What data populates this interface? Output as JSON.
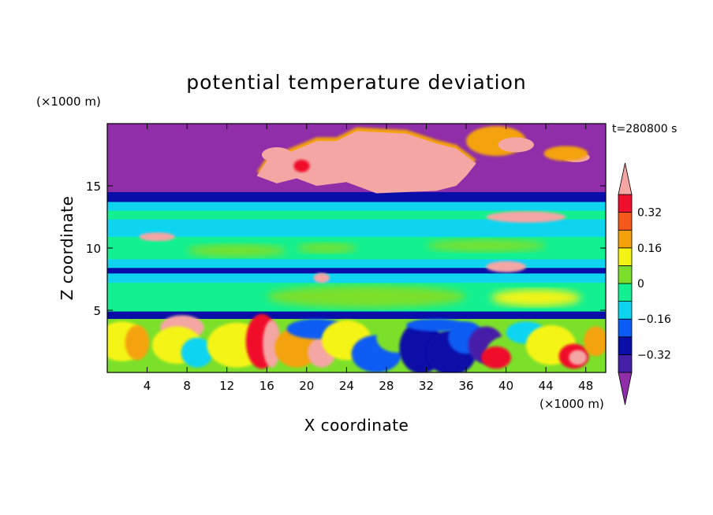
{
  "chart_data": {
    "type": "heatmap",
    "title": "potential temperature deviation",
    "xlabel": "X coordinate",
    "ylabel": "Z coordinate",
    "x_unit": "(×1000 m)",
    "y_unit": "(×1000 m)",
    "time_label": "t=280800 s",
    "xlim": [
      0,
      50
    ],
    "ylim": [
      0,
      20
    ],
    "x_ticks": [
      4,
      8,
      12,
      16,
      20,
      24,
      28,
      32,
      36,
      40,
      44,
      48
    ],
    "y_ticks": [
      5,
      10,
      15
    ],
    "colorbar": {
      "levels": [
        -0.4,
        -0.32,
        -0.24,
        -0.16,
        -0.08,
        0,
        0.08,
        0.16,
        0.24,
        0.32,
        0.4
      ],
      "tick_labels": [
        "0.32",
        "0.16",
        "0",
        "−0.16",
        "−0.32"
      ],
      "tick_values": [
        0.32,
        0.16,
        0,
        -0.16,
        -0.32
      ],
      "colors": [
        "#8f2ea8",
        "#461fa8",
        "#0a0ea8",
        "#0b5cf4",
        "#0fd4f0",
        "#12f092",
        "#7ce02a",
        "#f4f414",
        "#f4a20c",
        "#f4581a",
        "#f00f2c",
        "#f4a6a4"
      ],
      "extend": "both"
    },
    "field_description_bands": [
      {
        "z": [
          14.5,
          20
        ],
        "value": "below -0.4 with pink above +0.4 patches (x 8-48)"
      },
      {
        "z": [
          12,
          14.5
        ],
        "value": "-0.08 to 0.08"
      },
      {
        "z": [
          7.5,
          12
        ],
        "value": "-0.16 to 0.16"
      },
      {
        "z": [
          4.5,
          7.5
        ],
        "value": "0 to 0.16"
      },
      {
        "z": [
          0,
          4.5
        ],
        "value": "-0.4 to +0.4, alternating"
      }
    ]
  },
  "colors": {
    "purple": "#8f2ea8",
    "violet": "#461fa8",
    "navy": "#0a0ea8",
    "blue": "#0b5cf4",
    "cyan": "#0fd4f0",
    "springgreen": "#12f092",
    "green": "#7ce02a",
    "yellow": "#f4f414",
    "orange": "#f4a20c",
    "redorange": "#f4581a",
    "red": "#f00f2c",
    "pink": "#f4a6a4"
  }
}
